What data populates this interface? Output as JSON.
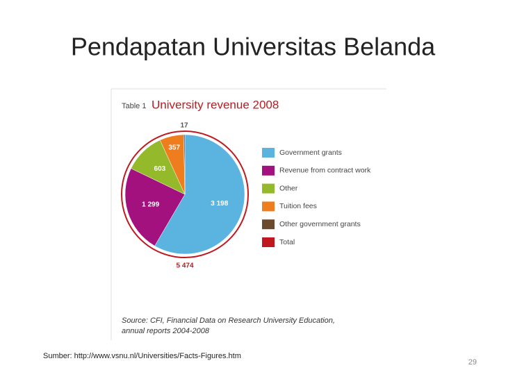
{
  "slide": {
    "title": "Pendapatan Universitas Belanda",
    "footnote": "Sumber: http://www.vsnu.nl/Universities/Facts-Figures.htm",
    "page_number": "29"
  },
  "chart_data": {
    "type": "pie",
    "label": "Table 1",
    "title": "University revenue 2008",
    "series": [
      {
        "name": "Government grants",
        "color": "#5bb4e0",
        "values": [
          3198
        ],
        "value_labels": [
          "3 198"
        ]
      },
      {
        "name": "Revenue from contract work",
        "color": "#a3117f",
        "values": [
          1299
        ],
        "value_labels": [
          "1 299"
        ]
      },
      {
        "name": "Other",
        "color": "#94b92a",
        "values": [
          603
        ]
      },
      {
        "name": "Tuition fees",
        "color": "#ee7d1d",
        "values": [
          357
        ]
      },
      {
        "name": "Other government grants",
        "color": "#6b4a2e",
        "values": [
          17
        ]
      }
    ],
    "total": {
      "name": "Total",
      "color": "#c0181f",
      "value": 5474,
      "label": "5 474"
    },
    "source": [
      "Source: CFI, Financial Data on Research University Education,",
      "annual reports 2004-2008"
    ]
  }
}
